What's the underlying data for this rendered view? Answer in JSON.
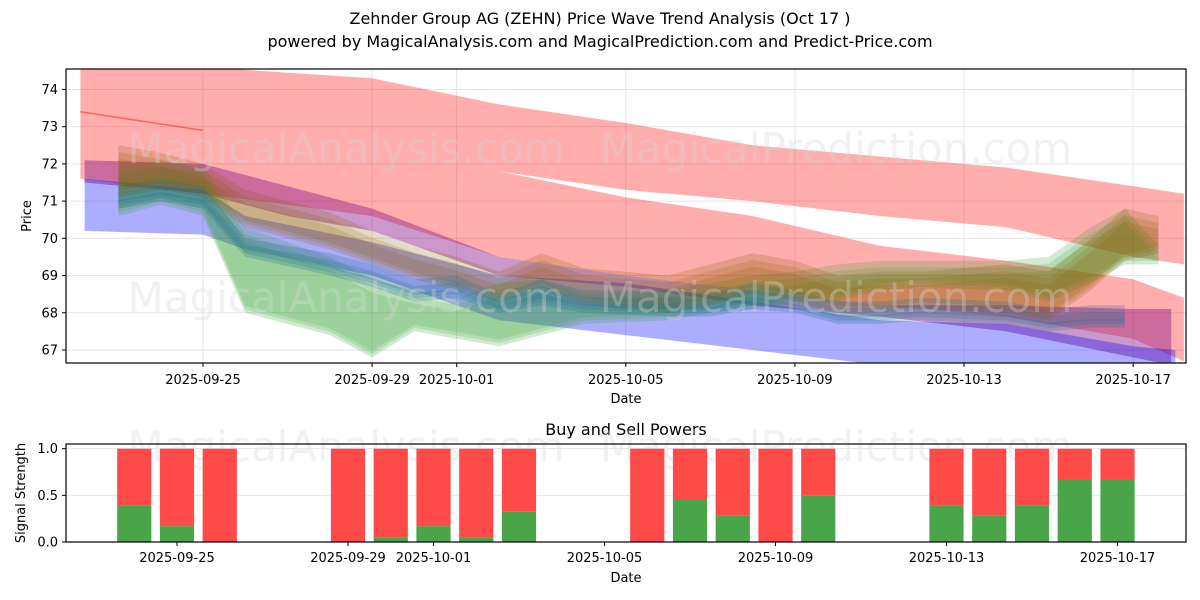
{
  "header": {
    "title": "Zehnder Group AG (ZEHN) Price Wave Trend Analysis (Oct 17 )",
    "subtitle": "powered by MagicalAnalysis.com and MagicalPrediction.com and Predict-Price.com"
  },
  "watermarks": [
    "MagicalAnalysis.com",
    "MagicalPrediction.com"
  ],
  "chart_data": [
    {
      "type": "area",
      "title": "",
      "xlabel": "Date",
      "ylabel": "Price",
      "ylim": [
        66.65,
        74.55
      ],
      "xlim": [
        "2025-09-21.8",
        "2025-10-18.3"
      ],
      "grid": true,
      "yticks": [
        67,
        68,
        69,
        70,
        71,
        72,
        73,
        74
      ],
      "xticks": [
        "2025-09-25",
        "2025-09-29",
        "2025-10-01",
        "2025-10-05",
        "2025-10-09",
        "2025-10-13",
        "2025-10-17"
      ],
      "series": [
        {
          "name": "red-upper-band",
          "color": "#ff0000",
          "opacity": 0.32,
          "x": [
            0.1,
            3,
            7,
            10,
            13,
            16,
            19,
            22,
            25,
            26.2
          ],
          "upper": [
            74.6,
            74.6,
            74.3,
            73.6,
            73.1,
            72.5,
            72.2,
            71.9,
            71.4,
            71.2
          ],
          "lower": [
            73.4,
            72.9,
            72.4,
            71.8,
            71.3,
            71.0,
            70.6,
            70.3,
            69.5,
            69.3
          ]
        },
        {
          "name": "red-lower-band",
          "color": "#ff0000",
          "opacity": 0.32,
          "x": [
            0.1,
            3,
            7,
            10,
            13,
            16,
            19,
            22,
            25,
            26.2
          ],
          "upper": [
            73.4,
            72.9,
            72.4,
            71.8,
            71.1,
            70.6,
            69.8,
            69.4,
            68.9,
            68.4
          ],
          "lower": [
            71.6,
            71.2,
            70.6,
            69.5,
            69.0,
            68.6,
            68.2,
            67.9,
            67.3,
            66.7
          ]
        },
        {
          "name": "purple-band",
          "color": "#8b1a8b",
          "opacity": 0.45,
          "x": [
            0.2,
            3,
            5,
            7,
            10,
            13,
            16,
            19,
            22,
            25,
            25.9
          ],
          "upper": [
            72.1,
            72.0,
            71.4,
            70.8,
            69.5,
            69.0,
            68.6,
            68.2,
            68.2,
            68.1,
            68.1
          ],
          "lower": [
            71.5,
            71.2,
            70.6,
            70.2,
            69.0,
            68.7,
            68.2,
            67.9,
            67.5,
            66.8,
            66.6
          ]
        },
        {
          "name": "blue-band",
          "color": "#0000ff",
          "opacity": 0.32,
          "x": [
            0.2,
            3,
            4,
            7,
            10,
            13,
            16,
            19,
            22,
            25,
            26
          ],
          "upper": [
            71.6,
            71.3,
            70.6,
            69.9,
            69.0,
            68.8,
            68.3,
            67.8,
            67.7,
            67.1,
            67.0
          ],
          "lower": [
            70.2,
            70.1,
            69.7,
            69.0,
            67.8,
            67.4,
            67.0,
            66.6,
            66.5,
            66.5,
            66.5
          ]
        },
        {
          "name": "green-wave",
          "color": "#2ca02c",
          "opacity": 0.22,
          "x": [
            1.0,
            2,
            3,
            4,
            6,
            7,
            8,
            9,
            10,
            11,
            12,
            14,
            15,
            16,
            17,
            18,
            19,
            20,
            22,
            23,
            24,
            24.8,
            25.6
          ],
          "upper": [
            71.9,
            72.1,
            71.9,
            70.3,
            69.5,
            68.9,
            68.6,
            68.4,
            68.8,
            68.9,
            68.5,
            68.6,
            68.8,
            69.0,
            69.1,
            69.3,
            69.4,
            69.4,
            69.4,
            69.5,
            70.3,
            70.8,
            69.8
          ],
          "lower": [
            70.6,
            70.9,
            70.6,
            68.0,
            67.4,
            66.8,
            67.5,
            67.3,
            67.1,
            67.4,
            67.7,
            67.8,
            68.0,
            68.1,
            68.3,
            68.3,
            68.6,
            68.7,
            68.6,
            68.3,
            68.8,
            69.3,
            69.3
          ]
        },
        {
          "name": "brown-wave",
          "color": "#8b5a00",
          "opacity": 0.22,
          "x": [
            1.0,
            2,
            3,
            4,
            6,
            7,
            8,
            9,
            10,
            11,
            12,
            14,
            15,
            16,
            17,
            18,
            19,
            20,
            22,
            23,
            24,
            24.8,
            25.6
          ],
          "upper": [
            72.5,
            72.3,
            72.0,
            71.3,
            70.7,
            70.2,
            69.8,
            69.5,
            69.1,
            69.6,
            69.2,
            69.0,
            69.3,
            69.6,
            69.4,
            69.0,
            69.1,
            69.1,
            69.3,
            69.1,
            70.0,
            70.8,
            70.6
          ],
          "lower": [
            71.1,
            71.3,
            71.1,
            70.3,
            69.7,
            69.3,
            68.9,
            68.6,
            68.3,
            68.6,
            68.2,
            68.0,
            68.2,
            68.5,
            68.3,
            68.0,
            68.0,
            68.1,
            68.0,
            67.8,
            68.6,
            69.4,
            69.6
          ]
        },
        {
          "name": "teal-wave",
          "color": "#1f6f8b",
          "opacity": 0.25,
          "x": [
            1.0,
            2,
            3,
            4,
            6,
            7,
            8,
            9,
            10,
            11,
            12,
            14,
            15,
            16,
            17,
            18,
            19,
            20,
            22,
            23,
            24,
            24.8
          ],
          "upper": [
            71.4,
            71.6,
            71.4,
            70.0,
            69.6,
            69.3,
            68.9,
            69.0,
            68.5,
            68.9,
            68.6,
            68.6,
            68.5,
            68.8,
            68.6,
            68.3,
            68.3,
            68.4,
            68.3,
            68.1,
            68.2,
            68.2
          ],
          "lower": [
            70.8,
            71.0,
            70.8,
            69.5,
            69.0,
            68.7,
            68.3,
            68.4,
            68.0,
            68.2,
            68.0,
            67.9,
            67.9,
            68.1,
            68.0,
            67.7,
            67.7,
            67.8,
            67.7,
            67.5,
            67.6,
            67.6
          ]
        }
      ]
    },
    {
      "type": "bar",
      "title": "Buy and Sell Powers",
      "xlabel": "Date",
      "ylabel": "Signal Strength",
      "ylim": [
        0,
        1.05
      ],
      "yticks": [
        "0.0",
        "0.5",
        "1.0"
      ],
      "xticks": [
        "2025-09-25",
        "2025-09-29",
        "2025-10-01",
        "2025-10-05",
        "2025-10-09",
        "2025-10-13",
        "2025-10-17"
      ],
      "grid": true,
      "categories": [
        "2025-09-24",
        "2025-09-25",
        "2025-09-26",
        "2025-09-29",
        "2025-09-30",
        "2025-10-01",
        "2025-10-02",
        "2025-10-03",
        "2025-10-06",
        "2025-10-07",
        "2025-10-08",
        "2025-10-09",
        "2025-10-10",
        "2025-10-13",
        "2025-10-14",
        "2025-10-15",
        "2025-10-16",
        "2025-10-17"
      ],
      "series": [
        {
          "name": "Buy",
          "color": "#4aa54a",
          "values": [
            0.39,
            0.17,
            0.0,
            0.0,
            0.05,
            0.17,
            0.05,
            0.33,
            0.0,
            0.45,
            0.28,
            0.0,
            0.5,
            0.39,
            0.28,
            0.39,
            0.67,
            0.67
          ]
        },
        {
          "name": "Sell",
          "color": "#ff4a4a",
          "values": [
            0.61,
            0.83,
            1.0,
            1.0,
            0.95,
            0.83,
            0.95,
            0.67,
            1.0,
            0.55,
            0.72,
            1.0,
            0.5,
            0.61,
            0.72,
            0.61,
            0.33,
            0.33
          ]
        }
      ]
    }
  ]
}
